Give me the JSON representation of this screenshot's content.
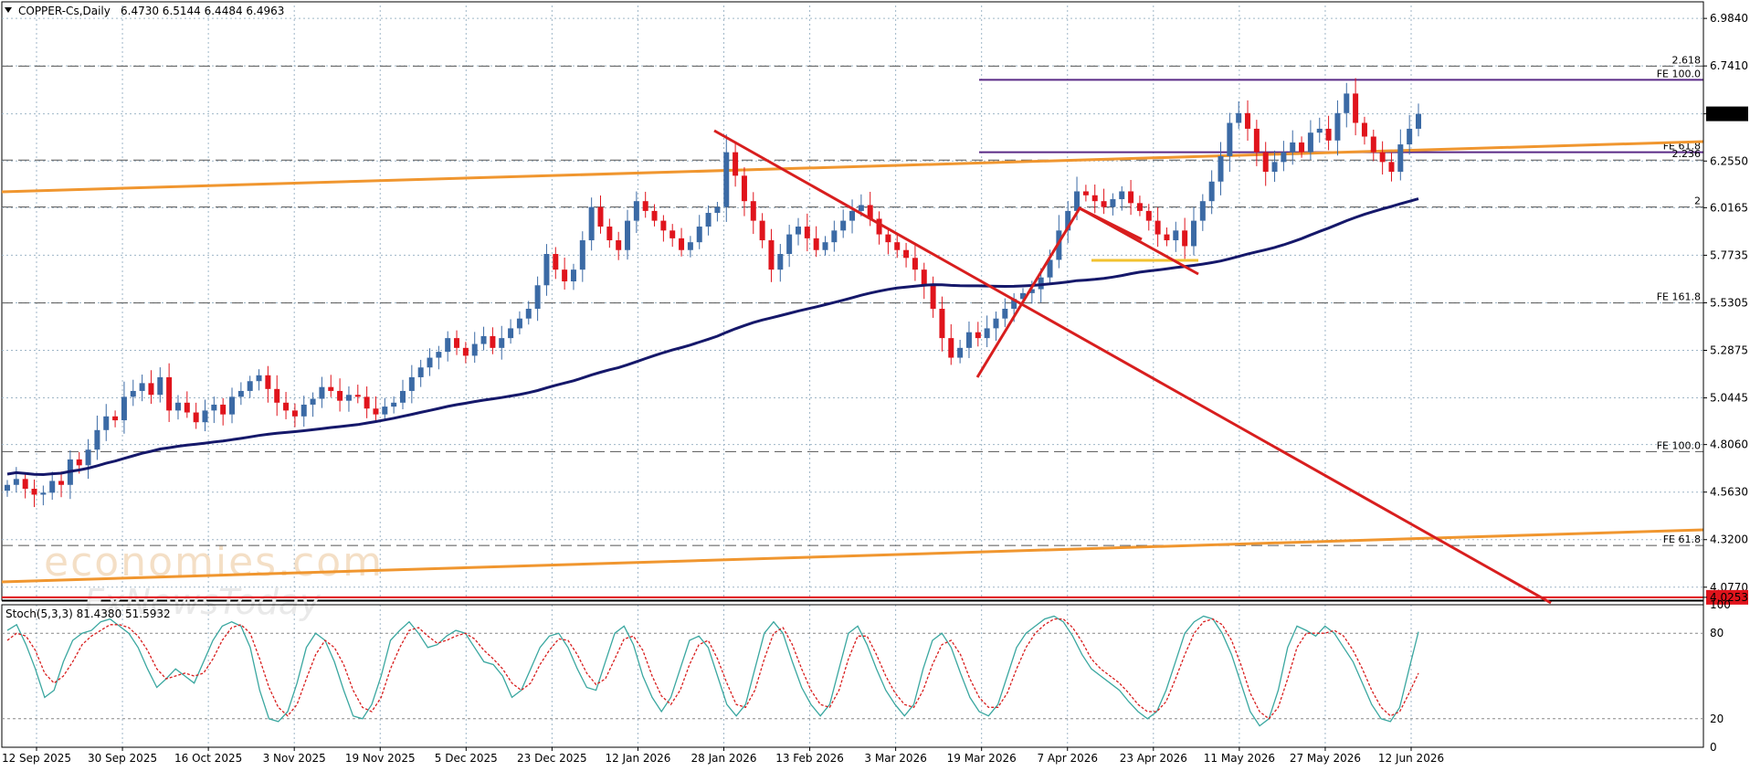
{
  "header": {
    "symbol_info": "COPPER-Cs,Daily",
    "ohlc": "6.4730 6.5144 6.4484 6.4963"
  },
  "watermark": {
    "line1": "economies.com",
    "line2": "FxNewsToday"
  },
  "colors": {
    "bull": "#3b6aa5",
    "bear": "#e0141c",
    "ma": "#15186a",
    "channel": "#f0962f",
    "trend": "#d81e1e",
    "fib": "#5a2a86",
    "grid": "#9fb6c7",
    "stoch_main": "#3aa7a0",
    "stoch_signal": "#d81e1e"
  },
  "chart_data": [
    {
      "type": "candlestick",
      "y_axis_ticks": [
        "6.9840",
        "6.7410",
        "6.4963",
        "6.2550",
        "6.0165",
        "5.7735",
        "5.5305",
        "5.2875",
        "5.0445",
        "4.8060",
        "4.5630",
        "4.3200",
        "4.0770",
        "4.0253"
      ],
      "ylim": [
        4.02,
        7.05
      ],
      "current_price": 6.4963,
      "support_price": 4.0253,
      "x_axis_labels": [
        "12 Sep 2025",
        "30 Sep 2025",
        "16 Oct 2025",
        "3 Nov 2025",
        "19 Nov 2025",
        "5 Dec 2025",
        "23 Dec 2025",
        "12 Jan 2026",
        "28 Jan 2026",
        "13 Feb 2026",
        "3 Mar 2026",
        "19 Mar 2026",
        "7 Apr 2026",
        "23 Apr 2026",
        "11 May 2026",
        "27 May 2026",
        "12 Jun 2026"
      ],
      "levels": [
        {
          "label": "2.618",
          "value": 6.74
        },
        {
          "label": "FE 100.0",
          "value": 6.67
        },
        {
          "label": "FE 61.8",
          "value": 6.3
        },
        {
          "label": "2.236",
          "value": 6.26
        },
        {
          "label": "2",
          "value": 6.02
        },
        {
          "label": "FE 161.8",
          "value": 5.53
        },
        {
          "label": "FE 100.0",
          "value": 4.77
        },
        {
          "label": "FE 61.8",
          "value": 4.29
        }
      ],
      "closes": [
        4.6,
        4.63,
        4.58,
        4.55,
        4.56,
        4.62,
        4.6,
        4.73,
        4.7,
        4.78,
        4.88,
        4.95,
        4.93,
        5.05,
        5.08,
        5.12,
        5.06,
        5.15,
        4.98,
        5.02,
        4.97,
        4.92,
        4.98,
        5.01,
        4.96,
        5.05,
        5.08,
        5.13,
        5.16,
        5.09,
        5.02,
        4.98,
        4.95,
        5.01,
        5.04,
        5.1,
        5.08,
        5.03,
        5.06,
        5.05,
        4.99,
        4.96,
        5.0,
        5.02,
        5.08,
        5.15,
        5.2,
        5.25,
        5.28,
        5.35,
        5.3,
        5.26,
        5.32,
        5.36,
        5.3,
        5.35,
        5.4,
        5.45,
        5.5,
        5.62,
        5.78,
        5.7,
        5.64,
        5.7,
        5.85,
        6.02,
        5.92,
        5.85,
        5.8,
        5.95,
        6.05,
        6.0,
        5.95,
        5.9,
        5.86,
        5.8,
        5.84,
        5.92,
        5.99,
        6.02,
        6.3,
        6.18,
        6.05,
        5.95,
        5.85,
        5.7,
        5.78,
        5.88,
        5.92,
        5.86,
        5.8,
        5.84,
        5.9,
        5.95,
        6.0,
        6.03,
        5.96,
        5.88,
        5.84,
        5.8,
        5.76,
        5.7,
        5.62,
        5.5,
        5.35,
        5.25,
        5.3,
        5.38,
        5.35,
        5.4,
        5.45,
        5.5,
        5.55,
        5.58,
        5.6,
        5.66,
        5.75,
        5.9,
        6.0,
        6.1,
        6.08,
        6.05,
        6.02,
        6.06,
        6.1,
        6.04,
        6.0,
        5.95,
        5.88,
        5.85,
        5.9,
        5.82,
        5.95,
        6.05,
        6.15,
        6.28,
        6.45,
        6.5,
        6.42,
        6.3,
        6.2,
        6.25,
        6.3,
        6.35,
        6.3,
        6.4,
        6.42,
        6.36,
        6.5,
        6.6,
        6.45,
        6.38,
        6.3,
        6.25,
        6.2,
        6.34,
        6.42,
        6.4963
      ],
      "ma_start": 4.7,
      "ma_end": 5.94,
      "overlays": [
        "orange rising channel",
        "red descending trendline",
        "red AB=CD pattern",
        "yellow horizontal segment"
      ]
    },
    {
      "type": "line",
      "title": "Stoch(5,3,3) 81.4380 51.5932",
      "ylim": [
        0,
        100
      ],
      "y_axis_ticks": [
        "100",
        "80",
        "20",
        "0"
      ],
      "series": [
        {
          "name": "main",
          "values": [
            82,
            86,
            72,
            55,
            35,
            40,
            60,
            75,
            80,
            82,
            88,
            90,
            85,
            80,
            70,
            55,
            42,
            48,
            55,
            50,
            45,
            60,
            75,
            85,
            88,
            85,
            70,
            40,
            20,
            18,
            25,
            45,
            70,
            80,
            75,
            60,
            40,
            22,
            20,
            30,
            50,
            75,
            82,
            88,
            80,
            70,
            72,
            78,
            82,
            80,
            70,
            60,
            58,
            50,
            35,
            40,
            55,
            70,
            78,
            80,
            70,
            55,
            42,
            40,
            60,
            80,
            85,
            72,
            50,
            35,
            25,
            35,
            55,
            75,
            78,
            70,
            50,
            30,
            22,
            30,
            55,
            80,
            88,
            80,
            60,
            42,
            30,
            22,
            30,
            55,
            80,
            85,
            72,
            55,
            40,
            30,
            22,
            30,
            55,
            75,
            80,
            70,
            52,
            35,
            25,
            22,
            30,
            50,
            70,
            80,
            85,
            90,
            92,
            88,
            78,
            65,
            55,
            50,
            45,
            40,
            32,
            25,
            20,
            25,
            40,
            60,
            80,
            88,
            92,
            90,
            80,
            65,
            45,
            25,
            15,
            20,
            40,
            70,
            85,
            82,
            78,
            85,
            80,
            70,
            60,
            45,
            30,
            20,
            18,
            28,
            55,
            81
          ]
        },
        {
          "name": "signal",
          "values": [
            75,
            80,
            78,
            68,
            52,
            45,
            50,
            60,
            72,
            78,
            82,
            86,
            86,
            84,
            78,
            68,
            55,
            48,
            50,
            52,
            50,
            52,
            62,
            75,
            84,
            86,
            80,
            62,
            42,
            28,
            22,
            30,
            48,
            65,
            75,
            70,
            58,
            40,
            28,
            25,
            35,
            55,
            70,
            82,
            84,
            78,
            73,
            75,
            78,
            80,
            76,
            68,
            62,
            55,
            45,
            40,
            45,
            58,
            68,
            76,
            75,
            65,
            52,
            44,
            48,
            62,
            76,
            78,
            68,
            50,
            36,
            30,
            40,
            58,
            72,
            75,
            62,
            45,
            30,
            28,
            40,
            62,
            80,
            84,
            72,
            55,
            40,
            30,
            28,
            40,
            62,
            78,
            78,
            65,
            50,
            38,
            30,
            28,
            40,
            58,
            72,
            75,
            65,
            48,
            35,
            28,
            28,
            38,
            55,
            70,
            80,
            86,
            90,
            90,
            84,
            74,
            62,
            55,
            50,
            45,
            38,
            30,
            25,
            25,
            32,
            48,
            65,
            80,
            88,
            90,
            86,
            75,
            58,
            38,
            25,
            20,
            28,
            48,
            70,
            80,
            80,
            80,
            82,
            78,
            68,
            55,
            40,
            28,
            22,
            25,
            38,
            52
          ]
        }
      ]
    }
  ]
}
